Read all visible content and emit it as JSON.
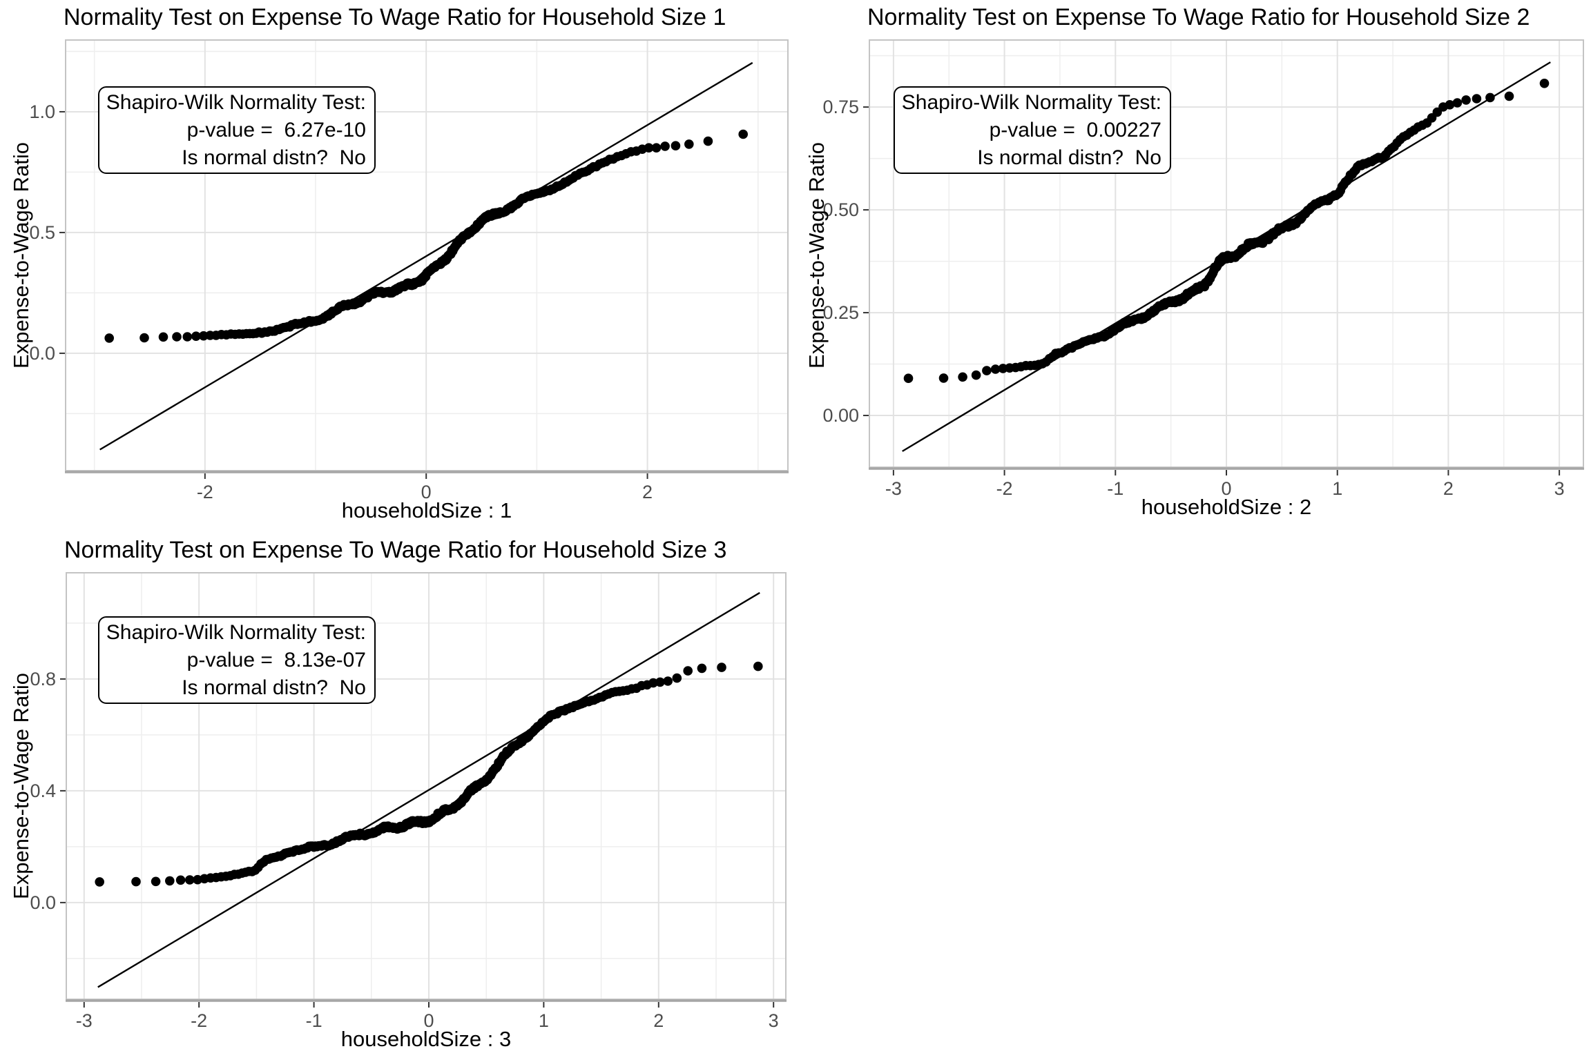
{
  "page": {
    "background": "#ffffff"
  },
  "colors": {
    "grid_major": "#e2e2e2",
    "grid_minor": "#eeeeee",
    "panel_border": "#c4c4c4",
    "axis_line": "#a6a6a6",
    "tick_mark": "#333333",
    "tick_label": "#4d4d4d",
    "title_text": "#000000",
    "point": "#000000",
    "ref_line": "#000000",
    "annotation_border": "#000000",
    "annotation_bg": "#ffffff"
  },
  "chart_data": [
    {
      "type": "scatter",
      "subtype": "qq-plot",
      "title": "Normality Test on Expense To Wage Ratio for Household Size 1",
      "xlabel": "householdSize : 1",
      "ylabel": "Expense-to-Wage Ratio",
      "annotation": [
        "Shapiro-Wilk Normality Test:",
        "p-value =  6.27e-10",
        "Is normal distn?  No"
      ],
      "shapiro_p_value": "6.27e-10",
      "is_normal": "No",
      "x_major_ticks": [
        -2,
        0,
        2
      ],
      "x_tick_labels": [
        "-2",
        "0",
        "2"
      ],
      "x_minor_ticks": [
        -3,
        -1,
        1,
        3
      ],
      "y_major_ticks": [
        0,
        0.5,
        1
      ],
      "y_tick_labels": [
        "0.0",
        "0.5",
        "1.0"
      ],
      "y_minor_ticks": [
        -0.25,
        0.25,
        0.75,
        1.25
      ],
      "xlim": [
        -3.26,
        3.27
      ],
      "ylim": [
        -0.486,
        1.297
      ],
      "grid": true,
      "n_points": 300,
      "point_jitter": 0.012,
      "ref_line": {
        "slope": 0.2715,
        "intercept": 0.402,
        "x_start": -2.95,
        "x_end": 2.95
      },
      "qq_curve": [
        [
          -2.97,
          0.062
        ],
        [
          -2.6,
          0.0635
        ],
        [
          -2.43,
          0.065
        ],
        [
          -2.31,
          0.066
        ],
        [
          -2.22,
          0.067
        ],
        [
          -2.13,
          0.0675
        ],
        [
          -2.06,
          0.068
        ],
        [
          -1.99,
          0.07
        ],
        [
          -1.9,
          0.0725
        ],
        [
          -1.8,
          0.0755
        ],
        [
          -1.7,
          0.079
        ],
        [
          -1.6,
          0.0835
        ],
        [
          -1.5,
          0.089
        ],
        [
          -1.4,
          0.0955
        ],
        [
          -1.3,
          0.103
        ],
        [
          -1.2,
          0.1125
        ],
        [
          -1.1,
          0.124
        ],
        [
          -1.0,
          0.1395
        ],
        [
          -0.9,
          0.158
        ],
        [
          -0.8,
          0.18
        ],
        [
          -0.7,
          0.2005
        ],
        [
          -0.6,
          0.22
        ],
        [
          -0.5,
          0.2405
        ],
        [
          -0.42,
          0.2505
        ],
        [
          -0.35,
          0.257
        ],
        [
          -0.28,
          0.2635
        ],
        [
          -0.2,
          0.273
        ],
        [
          -0.12,
          0.2885
        ],
        [
          -0.05,
          0.306
        ],
        [
          0.02,
          0.33
        ],
        [
          0.1,
          0.362
        ],
        [
          0.18,
          0.398
        ],
        [
          0.26,
          0.438
        ],
        [
          0.34,
          0.478
        ],
        [
          0.41,
          0.513
        ],
        [
          0.47,
          0.538
        ],
        [
          0.53,
          0.5565
        ],
        [
          0.6,
          0.568
        ],
        [
          0.68,
          0.585
        ],
        [
          0.76,
          0.607
        ],
        [
          0.85,
          0.6295
        ],
        [
          0.95,
          0.65
        ],
        [
          1.05,
          0.6685
        ],
        [
          1.15,
          0.687
        ],
        [
          1.25,
          0.707
        ],
        [
          1.35,
          0.7285
        ],
        [
          1.45,
          0.7515
        ],
        [
          1.55,
          0.776
        ],
        [
          1.65,
          0.8
        ],
        [
          1.75,
          0.8205
        ],
        [
          1.85,
          0.8365
        ],
        [
          1.95,
          0.8475
        ],
        [
          2.05,
          0.8535
        ],
        [
          2.15,
          0.857
        ],
        [
          2.25,
          0.86
        ],
        [
          2.37,
          0.8665
        ],
        [
          2.55,
          0.8775
        ],
        [
          2.72,
          0.889
        ],
        [
          2.97,
          0.92
        ]
      ]
    },
    {
      "type": "scatter",
      "subtype": "qq-plot",
      "title": "Normality Test on Expense To Wage Ratio for Household Size 2",
      "xlabel": "householdSize : 2",
      "ylabel": "Expense-to-Wage Ratio",
      "annotation": [
        "Shapiro-Wilk Normality Test:",
        "p-value =  0.00227",
        "Is normal distn?  No"
      ],
      "shapiro_p_value": "0.00227",
      "is_normal": "No",
      "x_major_ticks": [
        -3,
        -2,
        -1,
        0,
        1,
        2,
        3
      ],
      "x_tick_labels": [
        "-3",
        "-2",
        "-1",
        "0",
        "1",
        "2",
        "3"
      ],
      "x_minor_ticks": [
        -2.5,
        -1.5,
        -0.5,
        0.5,
        1.5,
        2.5
      ],
      "y_major_ticks": [
        0,
        0.25,
        0.5,
        0.75
      ],
      "y_tick_labels": [
        "0.00",
        "0.25",
        "0.50",
        "0.75"
      ],
      "y_minor_ticks": [
        0.125,
        0.375,
        0.625,
        0.875
      ],
      "xlim": [
        -3.217,
        3.217
      ],
      "ylim": [
        -0.1258,
        0.913
      ],
      "grid": true,
      "n_points": 300,
      "point_jitter": 0.008,
      "ref_line": {
        "slope": 0.162,
        "intercept": 0.386,
        "x_start": -2.92,
        "x_end": 2.92
      },
      "qq_curve": [
        [
          -2.93,
          0.09
        ],
        [
          -2.57,
          0.0905
        ],
        [
          -2.38,
          0.0935
        ],
        [
          -2.26,
          0.097
        ],
        [
          -2.16,
          0.1105
        ],
        [
          -2.07,
          0.1135
        ],
        [
          -1.99,
          0.1165
        ],
        [
          -1.9,
          0.12
        ],
        [
          -1.8,
          0.1235
        ],
        [
          -1.7,
          0.127
        ],
        [
          -1.62,
          0.131
        ],
        [
          -1.55,
          0.1485
        ],
        [
          -1.47,
          0.154
        ],
        [
          -1.39,
          0.1625
        ],
        [
          -1.31,
          0.174
        ],
        [
          -1.23,
          0.1825
        ],
        [
          -1.15,
          0.191
        ],
        [
          -1.07,
          0.2015
        ],
        [
          -0.99,
          0.2125
        ],
        [
          -0.91,
          0.2215
        ],
        [
          -0.83,
          0.2295
        ],
        [
          -0.75,
          0.2415
        ],
        [
          -0.67,
          0.2535
        ],
        [
          -0.59,
          0.2635
        ],
        [
          -0.51,
          0.2735
        ],
        [
          -0.43,
          0.2835
        ],
        [
          -0.35,
          0.2935
        ],
        [
          -0.27,
          0.3045
        ],
        [
          -0.21,
          0.3145
        ],
        [
          -0.16,
          0.335
        ],
        [
          -0.11,
          0.357
        ],
        [
          -0.05,
          0.373
        ],
        [
          0.01,
          0.383
        ],
        [
          0.08,
          0.394
        ],
        [
          0.16,
          0.405
        ],
        [
          0.24,
          0.4155
        ],
        [
          0.32,
          0.426
        ],
        [
          0.4,
          0.4375
        ],
        [
          0.48,
          0.4495
        ],
        [
          0.56,
          0.4625
        ],
        [
          0.64,
          0.476
        ],
        [
          0.72,
          0.491
        ],
        [
          0.8,
          0.509
        ],
        [
          0.88,
          0.5215
        ],
        [
          0.95,
          0.533
        ],
        [
          1.01,
          0.5445
        ],
        [
          1.07,
          0.566
        ],
        [
          1.13,
          0.5845
        ],
        [
          1.19,
          0.6035
        ],
        [
          1.26,
          0.6125
        ],
        [
          1.34,
          0.6225
        ],
        [
          1.42,
          0.6335
        ],
        [
          1.49,
          0.652
        ],
        [
          1.57,
          0.6745
        ],
        [
          1.65,
          0.6875
        ],
        [
          1.73,
          0.7005
        ],
        [
          1.81,
          0.7115
        ],
        [
          1.89,
          0.733
        ],
        [
          1.97,
          0.753
        ],
        [
          2.05,
          0.757
        ],
        [
          2.14,
          0.765
        ],
        [
          2.23,
          0.768
        ],
        [
          2.36,
          0.771
        ],
        [
          2.55,
          0.776
        ],
        [
          2.73,
          0.79
        ],
        [
          2.9,
          0.812
        ]
      ]
    },
    {
      "type": "scatter",
      "subtype": "qq-plot",
      "title": "Normality Test on Expense To Wage Ratio for Household Size 3",
      "xlabel": "householdSize : 3",
      "ylabel": "Expense-to-Wage Ratio",
      "annotation": [
        "Shapiro-Wilk Normality Test:",
        "p-value =  8.13e-07",
        "Is normal distn?  No"
      ],
      "shapiro_p_value": "8.13e-07",
      "is_normal": "No",
      "x_major_ticks": [
        -3,
        -2,
        -1,
        0,
        1,
        2,
        3
      ],
      "x_tick_labels": [
        "-3",
        "-2",
        "-1",
        "0",
        "1",
        "2",
        "3"
      ],
      "x_minor_ticks": [
        -2.5,
        -1.5,
        -0.5,
        0.5,
        1.5,
        2.5
      ],
      "y_major_ticks": [
        0,
        0.4,
        0.8
      ],
      "y_tick_labels": [
        "0.0",
        "0.4",
        "0.8"
      ],
      "y_minor_ticks": [
        -0.2,
        0.2,
        0.6,
        1.0
      ],
      "xlim": [
        -3.155,
        3.107
      ],
      "ylim": [
        -0.346,
        1.18
      ],
      "grid": true,
      "n_points": 300,
      "point_jitter": 0.01,
      "ref_line": {
        "slope": 0.245,
        "intercept": 0.403,
        "x_start": -2.88,
        "x_end": 2.88
      },
      "qq_curve": [
        [
          -2.88,
          0.0745
        ],
        [
          -2.52,
          0.0755
        ],
        [
          -2.33,
          0.0775
        ],
        [
          -2.2,
          0.0795
        ],
        [
          -2.1,
          0.0815
        ],
        [
          -2.02,
          0.0835
        ],
        [
          -1.95,
          0.0855
        ],
        [
          -1.88,
          0.0875
        ],
        [
          -1.8,
          0.0905
        ],
        [
          -1.7,
          0.0965
        ],
        [
          -1.6,
          0.104
        ],
        [
          -1.52,
          0.111
        ],
        [
          -1.46,
          0.1375
        ],
        [
          -1.41,
          0.153
        ],
        [
          -1.34,
          0.1655
        ],
        [
          -1.26,
          0.1765
        ],
        [
          -1.18,
          0.1845
        ],
        [
          -1.1,
          0.19
        ],
        [
          -1.02,
          0.196
        ],
        [
          -0.94,
          0.2025
        ],
        [
          -0.86,
          0.2125
        ],
        [
          -0.78,
          0.2235
        ],
        [
          -0.7,
          0.2325
        ],
        [
          -0.62,
          0.2415
        ],
        [
          -0.54,
          0.249
        ],
        [
          -0.46,
          0.2565
        ],
        [
          -0.38,
          0.2635
        ],
        [
          -0.3,
          0.27
        ],
        [
          -0.22,
          0.2765
        ],
        [
          -0.14,
          0.2825
        ],
        [
          -0.06,
          0.289
        ],
        [
          0.02,
          0.3
        ],
        [
          0.1,
          0.3145
        ],
        [
          0.18,
          0.3335
        ],
        [
          0.26,
          0.3575
        ],
        [
          0.34,
          0.386
        ],
        [
          0.42,
          0.4145
        ],
        [
          0.5,
          0.4445
        ],
        [
          0.58,
          0.4815
        ],
        [
          0.66,
          0.5235
        ],
        [
          0.74,
          0.5575
        ],
        [
          0.82,
          0.5855
        ],
        [
          0.9,
          0.6115
        ],
        [
          0.98,
          0.6385
        ],
        [
          1.06,
          0.6635
        ],
        [
          1.14,
          0.683
        ],
        [
          1.22,
          0.699
        ],
        [
          1.3,
          0.7115
        ],
        [
          1.38,
          0.7215
        ],
        [
          1.48,
          0.7305
        ],
        [
          1.56,
          0.7435
        ],
        [
          1.64,
          0.7505
        ],
        [
          1.72,
          0.7575
        ],
        [
          1.8,
          0.7665
        ],
        [
          1.88,
          0.7775
        ],
        [
          1.96,
          0.7855
        ],
        [
          2.05,
          0.7925
        ],
        [
          2.14,
          0.798
        ],
        [
          2.27,
          0.835
        ],
        [
          2.45,
          0.842
        ],
        [
          2.66,
          0.8445
        ],
        [
          2.88,
          0.8455
        ]
      ]
    }
  ]
}
